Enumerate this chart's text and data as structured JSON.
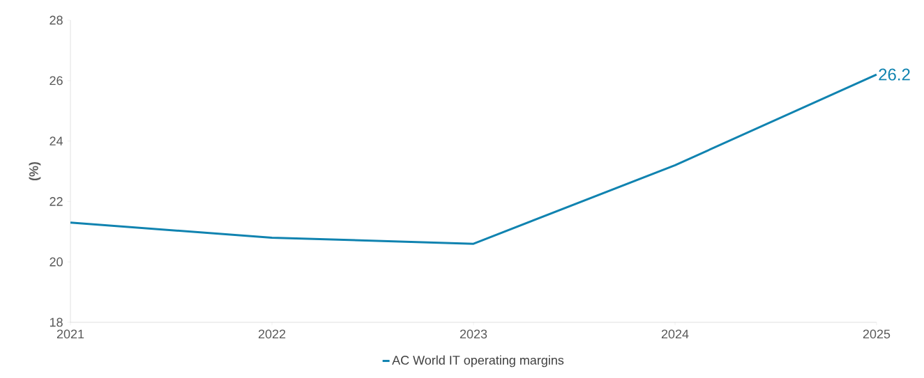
{
  "chart_data": {
    "type": "line",
    "ylabel": "(%)",
    "x": [
      2021,
      2022,
      2023,
      2024,
      2025
    ],
    "series": [
      {
        "name": "AC World IT operating margins",
        "color": "#1083b0",
        "values": [
          21.3,
          20.8,
          20.6,
          23.2,
          26.2
        ],
        "value_labels": [
          null,
          null,
          null,
          null,
          "26.2"
        ]
      }
    ],
    "xlim": [
      2021,
      2025
    ],
    "xticks": [
      2021,
      2022,
      2023,
      2024,
      2025
    ],
    "ylim": [
      18,
      28
    ],
    "yticks": [
      18,
      20,
      22,
      24,
      26,
      28
    ],
    "grid": false,
    "legend": "bottom",
    "marker": "none",
    "line_style": "solid"
  }
}
